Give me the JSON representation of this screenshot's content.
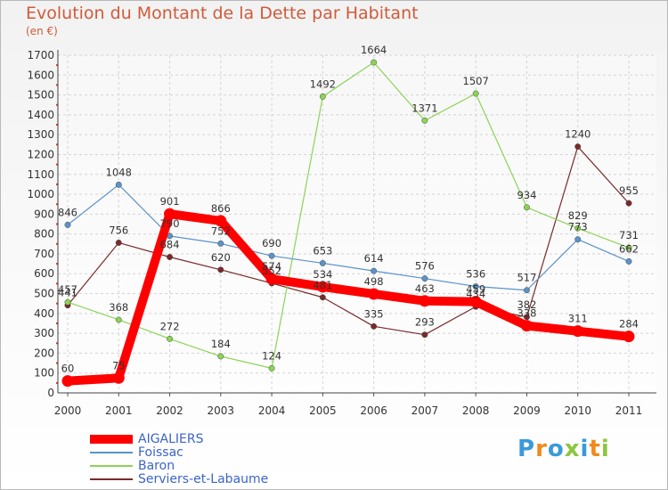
{
  "title": "Evolution du Montant de la Dette par Habitant",
  "unit": "(en €)",
  "logo": {
    "letters": [
      "P",
      "r",
      "o",
      "x",
      "i",
      "t",
      "i"
    ],
    "colors": [
      "#3a9ad9",
      "#f08a1c",
      "#3a9ad9",
      "#8cc63f",
      "#3a9ad9",
      "#f08a1c",
      "#8cc63f"
    ]
  },
  "chart_data": {
    "type": "line",
    "x": [
      "2000",
      "2001",
      "2002",
      "2003",
      "2004",
      "2005",
      "2006",
      "2007",
      "2008",
      "2009",
      "2010",
      "2011"
    ],
    "ylim": [
      0,
      1700
    ],
    "yticks": [
      "0",
      "100",
      "200",
      "300",
      "400",
      "500",
      "600",
      "700",
      "800",
      "900",
      "1000",
      "1100",
      "1200",
      "1300",
      "1400",
      "1500",
      "1600",
      "1700"
    ],
    "grid": true,
    "legend_position": "bottom-left",
    "series": [
      {
        "name": "AIGALIERS",
        "color": "#ff0000",
        "values": [
          60,
          75,
          901,
          866,
          574,
          534,
          498,
          463,
          459,
          338,
          311,
          284
        ],
        "labels": [
          "60",
          "75",
          "901",
          "866",
          "574",
          "534",
          "498",
          "463",
          "459",
          "338",
          "311",
          "284"
        ]
      },
      {
        "name": "Foissac",
        "color": "#5b93c9",
        "values": [
          846,
          1048,
          790,
          752,
          690,
          653,
          614,
          576,
          536,
          517,
          773,
          662
        ],
        "labels": [
          "846",
          "1048",
          "790",
          "752",
          "690",
          "653",
          "614",
          "576",
          "536",
          "517",
          "773",
          "662"
        ]
      },
      {
        "name": "Baron",
        "color": "#8cd455",
        "values": [
          457,
          368,
          272,
          184,
          124,
          1492,
          1664,
          1371,
          1507,
          934,
          829,
          731
        ],
        "labels": [
          "457",
          "368",
          "272",
          "184",
          "124",
          "1492",
          "1664",
          "1371",
          "1507",
          "934",
          "829",
          "731"
        ]
      },
      {
        "name": "Serviers-et-Labaume",
        "color": "#7a2a2a",
        "values": [
          441,
          756,
          684,
          620,
          552,
          481,
          335,
          293,
          434,
          382,
          1240,
          955
        ],
        "labels": [
          "441",
          "756",
          "684",
          "620",
          "552",
          "481",
          "335",
          "293",
          "434",
          "382",
          "1240",
          "955"
        ]
      }
    ]
  }
}
